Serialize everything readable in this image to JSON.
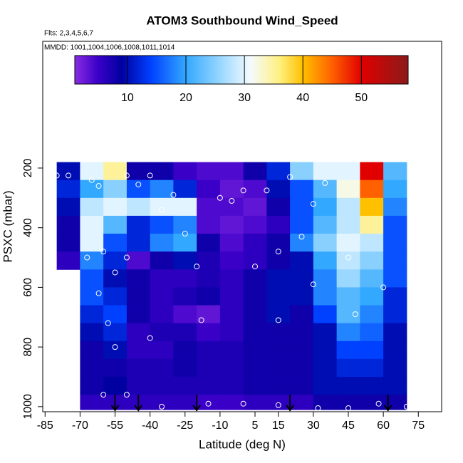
{
  "chart_data": {
    "type": "heatmap",
    "title": "ATOM3 Southbound Wind_Speed",
    "subtitle": "Flts: 2,3,4,5,6,7",
    "annotation": "MMDD: 1001,1004,1006,1008,1011,1014",
    "x_label": "Latitude (deg N)",
    "y_label": "PSXC (mbar)",
    "xlim": [
      -86,
      85
    ],
    "ylim": [
      1017,
      -225
    ],
    "xticks": [
      -85,
      -70,
      -55,
      -40,
      -25,
      -10,
      5,
      15,
      30,
      45,
      60,
      75
    ],
    "yticks": [
      200,
      400,
      600,
      800,
      1000
    ],
    "x_edges": [
      -80,
      -70,
      -60,
      -50,
      -40,
      -30,
      -20,
      -10,
      0,
      10,
      20,
      30,
      40,
      50,
      60,
      70
    ],
    "y_edges": [
      180,
      240,
      300,
      360,
      420,
      480,
      540,
      600,
      660,
      720,
      780,
      840,
      900,
      960,
      1010
    ],
    "z": [
      [
        10,
        30,
        35,
        8,
        8,
        5,
        4,
        4,
        8,
        12,
        25,
        30,
        30,
        50,
        22
      ],
      [
        12,
        20,
        25,
        15,
        18,
        12,
        5,
        3,
        4,
        10,
        15,
        22,
        32,
        45,
        20
      ],
      [
        10,
        28,
        30,
        28,
        30,
        30,
        4,
        4,
        3,
        8,
        15,
        20,
        28,
        40,
        18
      ],
      [
        8,
        30,
        22,
        12,
        15,
        18,
        4,
        3,
        4,
        6,
        15,
        22,
        28,
        35,
        15
      ],
      [
        8,
        30,
        15,
        12,
        18,
        20,
        8,
        4,
        6,
        8,
        18,
        25,
        30,
        28,
        15
      ],
      [
        6,
        18,
        12,
        4,
        8,
        10,
        7,
        5,
        6,
        8,
        10,
        20,
        28,
        25,
        15
      ],
      [
        null,
        15,
        10,
        8,
        6,
        6,
        7,
        6,
        8,
        10,
        10,
        18,
        26,
        22,
        15
      ],
      [
        null,
        15,
        12,
        8,
        6,
        7,
        8,
        6,
        8,
        10,
        10,
        18,
        22,
        20,
        12
      ],
      [
        null,
        12,
        14,
        8,
        6,
        4,
        3,
        6,
        8,
        10,
        8,
        14,
        22,
        18,
        12
      ],
      [
        null,
        10,
        12,
        6,
        7,
        7,
        5,
        6,
        8,
        8,
        8,
        10,
        18,
        16,
        10
      ],
      [
        null,
        8,
        10,
        6,
        6,
        8,
        7,
        7,
        8,
        8,
        8,
        10,
        14,
        14,
        10
      ],
      [
        null,
        8,
        8,
        7,
        7,
        8,
        7,
        7,
        8,
        8,
        8,
        10,
        12,
        12,
        10
      ],
      [
        null,
        8,
        9,
        7,
        7,
        7,
        7,
        7,
        8,
        8,
        8,
        10,
        10,
        10,
        10
      ],
      [
        null,
        6,
        6,
        6,
        6,
        6,
        5,
        5,
        6,
        6,
        6,
        8,
        8,
        8,
        8
      ]
    ],
    "colorscale": [
      [
        1,
        "#8a2be2"
      ],
      [
        5,
        "#3a00c8"
      ],
      [
        9,
        "#0000a0"
      ],
      [
        14,
        "#0040ff"
      ],
      [
        20,
        "#33a8ff"
      ],
      [
        26,
        "#9ad8ff"
      ],
      [
        31,
        "#f4fbff"
      ],
      [
        36,
        "#fff080"
      ],
      [
        40,
        "#ffc000"
      ],
      [
        45,
        "#ff6000"
      ],
      [
        50,
        "#e00000"
      ],
      [
        58,
        "#8b1a1a"
      ]
    ],
    "cbar_lim": [
      1,
      58
    ],
    "cbar_ticks": [
      10,
      20,
      30,
      40,
      50
    ],
    "points": {
      "x": [
        -80,
        -75,
        -65,
        -62,
        -50,
        -40,
        -45,
        -30,
        -35,
        -25,
        -10,
        -5,
        0,
        10,
        20,
        30,
        35,
        -67,
        -60,
        -55,
        -50,
        -20,
        5,
        15,
        25,
        30,
        15,
        -18,
        -40,
        -55,
        48,
        60,
        45,
        -60,
        -50,
        -35,
        -15,
        0,
        15,
        32,
        45,
        58,
        70,
        72,
        -62,
        -58
      ],
      "y": [
        225,
        225,
        240,
        260,
        225,
        225,
        255,
        290,
        340,
        420,
        300,
        310,
        275,
        275,
        230,
        320,
        250,
        500,
        480,
        550,
        500,
        530,
        530,
        480,
        430,
        590,
        710,
        710,
        770,
        800,
        690,
        600,
        500,
        960,
        960,
        1000,
        990,
        990,
        995,
        1005,
        1005,
        990,
        1000,
        675,
        620,
        720
      ]
    },
    "arrows": [
      -55,
      -45,
      -20,
      20,
      62
    ]
  }
}
